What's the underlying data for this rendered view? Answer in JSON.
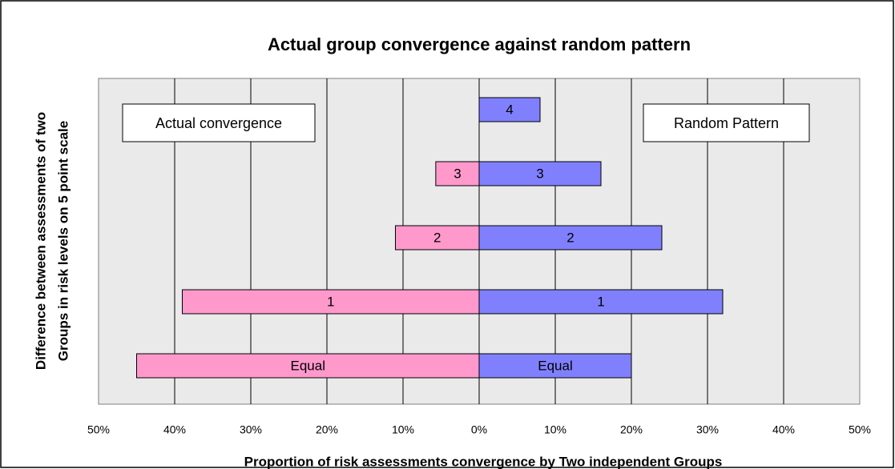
{
  "chart_data": {
    "type": "bar",
    "orientation": "horizontal",
    "title": "Actual group convergence against random pattern",
    "xlabel": "Proportion of risk assessments convergence by Two independent Groups",
    "ylabel": [
      "Difference between assessments of two",
      "Groups in risk levels on 5 point scale"
    ],
    "categories": [
      "Equal",
      "1",
      "2",
      "3",
      "4"
    ],
    "series": [
      {
        "name": "Actual convergence",
        "color": "#ff99cc",
        "values": [
          -45,
          -39,
          -11,
          -5.7,
          0
        ]
      },
      {
        "name": "Random Pattern",
        "color": "#8080ff",
        "values": [
          20,
          32,
          24,
          16,
          8
        ]
      }
    ],
    "xlim": [
      -50,
      50
    ],
    "xticks": [
      {
        "value": -50,
        "label": "50%"
      },
      {
        "value": -40,
        "label": "40%"
      },
      {
        "value": -30,
        "label": "30%"
      },
      {
        "value": -20,
        "label": "20%"
      },
      {
        "value": -10,
        "label": "10%"
      },
      {
        "value": 0,
        "label": "0%"
      },
      {
        "value": 10,
        "label": "10%"
      },
      {
        "value": 20,
        "label": "20%"
      },
      {
        "value": 30,
        "label": "30%"
      },
      {
        "value": 40,
        "label": "40%"
      },
      {
        "value": 50,
        "label": "50%"
      }
    ],
    "grid": true
  }
}
